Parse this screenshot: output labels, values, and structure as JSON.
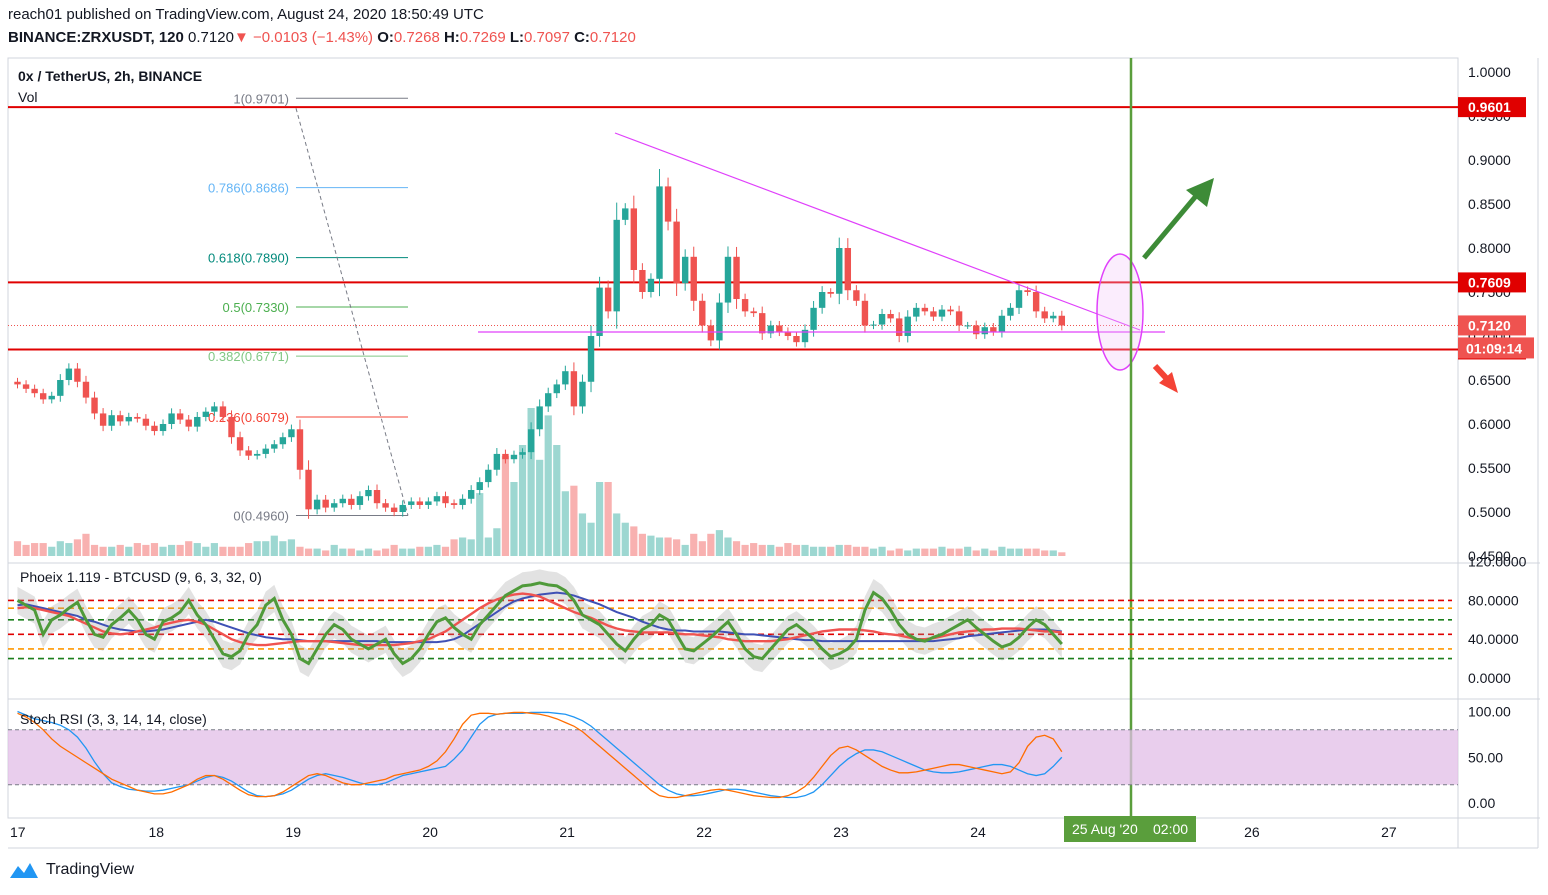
{
  "header": {
    "publisher": "reach01 published on TradingView.com, August 24, 2020 18:50:49 UTC",
    "symbol": "BINANCE:ZRXUSDT, 120",
    "last": "0.7120",
    "change": "−0.0103 (−1.43%)",
    "open_label": "O:",
    "open": "0.7268",
    "high_label": "H:",
    "high": "0.7269",
    "low_label": "L:",
    "low": "0.7097",
    "close_label": "C:",
    "close": "0.7120"
  },
  "colors": {
    "up": "#26a69a",
    "down": "#ef5350",
    "red_level": "#e00000",
    "trend": "#e040fb",
    "green_line": "#5a9e3c",
    "stoch_band": "#e1bee7"
  },
  "brand": {
    "name": "TradingView",
    "icon": "tradingview-logo-icon"
  },
  "chart_data": [
    {
      "type": "candlestick",
      "title": "0x / TetherUS, 2h, BINANCE",
      "volume_label": "Vol",
      "ylim": [
        0.45,
        1.01
      ],
      "y_ticks": [
        "1.0000",
        "0.9500",
        "0.9000",
        "0.8500",
        "0.8000",
        "0.7500",
        "0.7000",
        "0.6500",
        "0.6000",
        "0.5500",
        "0.5000",
        "0.4500"
      ],
      "x_ticks": [
        "17",
        "18",
        "19",
        "20",
        "21",
        "22",
        "23",
        "24",
        "25 Aug '20",
        "26",
        "27"
      ],
      "x_tick_index": [
        0,
        16,
        32,
        48,
        64,
        80,
        96,
        112,
        128,
        144,
        160
      ],
      "crosshair_time": "02:00",
      "horizontal_levels": [
        {
          "price": 0.9601,
          "label": "0.9601"
        },
        {
          "price": 0.7609,
          "label": "0.7609"
        },
        {
          "price": 0.6847,
          "label": "0.6847"
        }
      ],
      "last_price_label": "0.7120",
      "countdown_label": "01:09:14",
      "fib_levels": [
        {
          "ratio": "1",
          "price": 0.9701,
          "label": "1(0.9701)",
          "color": "#787b86"
        },
        {
          "ratio": "0.786",
          "price": 0.8686,
          "label": "0.786(0.8686)",
          "color": "#64b5f6"
        },
        {
          "ratio": "0.618",
          "price": 0.789,
          "label": "0.618(0.7890)",
          "color": "#00897b"
        },
        {
          "ratio": "0.5",
          "price": 0.733,
          "label": "0.5(0.7330)",
          "color": "#4caf50"
        },
        {
          "ratio": "0.382",
          "price": 0.6771,
          "label": "0.382(0.6771)",
          "color": "#81c784"
        },
        {
          "ratio": "0.236",
          "price": 0.6079,
          "label": "0.236(0.6079)",
          "color": "#f44336"
        },
        {
          "ratio": "0",
          "price": 0.496,
          "label": "0(0.4960)",
          "color": "#787b86"
        }
      ],
      "closes": [
        0.645,
        0.64,
        0.635,
        0.628,
        0.632,
        0.65,
        0.663,
        0.648,
        0.63,
        0.612,
        0.598,
        0.61,
        0.603,
        0.608,
        0.606,
        0.598,
        0.592,
        0.6,
        0.612,
        0.605,
        0.597,
        0.608,
        0.614,
        0.62,
        0.608,
        0.585,
        0.57,
        0.564,
        0.566,
        0.572,
        0.577,
        0.585,
        0.594,
        0.548,
        0.503,
        0.514,
        0.505,
        0.51,
        0.515,
        0.508,
        0.518,
        0.525,
        0.51,
        0.505,
        0.5,
        0.508,
        0.512,
        0.508,
        0.512,
        0.518,
        0.51,
        0.508,
        0.515,
        0.525,
        0.534,
        0.548,
        0.566,
        0.56,
        0.565,
        0.568,
        0.594,
        0.62,
        0.635,
        0.645,
        0.66,
        0.62,
        0.648,
        0.7,
        0.755,
        0.728,
        0.832,
        0.845,
        0.775,
        0.75,
        0.765,
        0.87,
        0.83,
        0.76,
        0.79,
        0.74,
        0.712,
        0.695,
        0.738,
        0.79,
        0.742,
        0.728,
        0.726,
        0.703,
        0.712,
        0.705,
        0.7,
        0.693,
        0.707,
        0.732,
        0.75,
        0.748,
        0.8,
        0.752,
        0.74,
        0.712,
        0.713,
        0.725,
        0.72,
        0.7,
        0.722,
        0.732,
        0.728,
        0.722,
        0.73,
        0.728,
        0.712,
        0.712,
        0.702,
        0.71,
        0.705,
        0.723,
        0.732,
        0.752,
        0.75,
        0.728,
        0.72,
        0.723,
        0.712
      ],
      "volume_ratio": [
        0.08,
        0.06,
        0.07,
        0.07,
        0.05,
        0.08,
        0.07,
        0.09,
        0.12,
        0.06,
        0.05,
        0.05,
        0.06,
        0.05,
        0.07,
        0.06,
        0.07,
        0.05,
        0.06,
        0.06,
        0.08,
        0.07,
        0.05,
        0.07,
        0.05,
        0.05,
        0.05,
        0.07,
        0.08,
        0.08,
        0.11,
        0.08,
        0.09,
        0.05,
        0.04,
        0.04,
        0.03,
        0.06,
        0.04,
        0.04,
        0.03,
        0.04,
        0.03,
        0.04,
        0.06,
        0.04,
        0.04,
        0.05,
        0.05,
        0.06,
        0.05,
        0.09,
        0.1,
        0.09,
        0.34,
        0.1,
        0.15,
        0.54,
        0.4,
        0.6,
        0.8,
        0.52,
        0.76,
        0.6,
        0.35,
        0.38,
        0.23,
        0.18,
        0.4,
        0.4,
        0.23,
        0.18,
        0.16,
        0.12,
        0.11,
        0.1,
        0.1,
        0.09,
        0.06,
        0.12,
        0.08,
        0.12,
        0.14,
        0.1,
        0.08,
        0.06,
        0.07,
        0.06,
        0.06,
        0.05,
        0.07,
        0.06,
        0.06,
        0.05,
        0.05,
        0.05,
        0.06,
        0.06,
        0.05,
        0.05,
        0.04,
        0.05,
        0.03,
        0.04,
        0.03,
        0.04,
        0.04,
        0.04,
        0.05,
        0.04,
        0.04,
        0.05,
        0.03,
        0.04,
        0.03,
        0.05,
        0.04,
        0.04,
        0.04,
        0.04,
        0.03,
        0.03,
        0.02
      ]
    },
    {
      "type": "line",
      "title": "Phoeix 1.119 - BTCUSD (9, 6, 3, 32, 0)",
      "ylim": [
        -10,
        120
      ],
      "y_ticks": [
        "120.0000",
        "80.0000",
        "40.0000",
        "0.0000"
      ],
      "levels": [
        80,
        72,
        60,
        45,
        30,
        20
      ],
      "series": [
        {
          "values": [
            75,
            76,
            74,
            72,
            70,
            68,
            66,
            64,
            60,
            58,
            55,
            52,
            50,
            49,
            48,
            48,
            49,
            50,
            52,
            54,
            56,
            58,
            60,
            58,
            55,
            52,
            49,
            46,
            44,
            42,
            41,
            40,
            40,
            39,
            38,
            38,
            38,
            38,
            38,
            38,
            38,
            38,
            38,
            37,
            37,
            37,
            37,
            37,
            37,
            37,
            38,
            40,
            44,
            50,
            56,
            62,
            68,
            74,
            79,
            82,
            84,
            86,
            87,
            88,
            87,
            85,
            82,
            79,
            76,
            72,
            68,
            65,
            62,
            58,
            55,
            52,
            50,
            49,
            49,
            48,
            48,
            48,
            48,
            47,
            46,
            45,
            45,
            44,
            43,
            42,
            41,
            40,
            39,
            39,
            38,
            38,
            38,
            38,
            38,
            38,
            38,
            38,
            38,
            38,
            38,
            38,
            38,
            38,
            39,
            40,
            41,
            43,
            44,
            45,
            46,
            47,
            48,
            49,
            50,
            50,
            50,
            49,
            48
          ]
        },
        {
          "values": [
            72,
            73,
            72,
            70,
            68,
            66,
            64,
            60,
            56,
            52,
            48,
            46,
            45,
            46,
            48,
            50,
            52,
            55,
            57,
            59,
            60,
            58,
            55,
            50,
            45,
            40,
            37,
            35,
            34,
            34,
            35,
            36,
            37,
            38,
            38,
            38,
            38,
            37,
            36,
            35,
            34,
            34,
            34,
            34,
            34,
            35,
            36,
            38,
            40,
            44,
            48,
            54,
            60,
            66,
            72,
            77,
            81,
            84,
            86,
            87,
            86,
            84,
            80,
            76,
            72,
            68,
            65,
            62,
            58,
            54,
            51,
            49,
            48,
            47,
            47,
            47,
            47,
            46,
            45,
            45,
            44,
            43,
            42,
            40,
            39,
            38,
            38,
            38,
            38,
            39,
            40,
            42,
            44,
            46,
            48,
            49,
            50,
            50,
            50,
            49,
            48,
            46,
            45,
            44,
            42,
            40,
            40,
            41,
            43,
            45,
            47,
            48,
            49,
            50,
            50,
            51,
            51,
            51,
            50,
            49,
            48,
            48,
            47
          ]
        },
        {
          "values": [
            80,
            75,
            70,
            45,
            60,
            65,
            72,
            78,
            60,
            45,
            42,
            55,
            62,
            70,
            60,
            45,
            40,
            58,
            62,
            68,
            80,
            65,
            55,
            40,
            25,
            22,
            28,
            45,
            55,
            75,
            82,
            60,
            45,
            20,
            15,
            30,
            45,
            55,
            50,
            40,
            35,
            30,
            35,
            40,
            25,
            15,
            20,
            30,
            45,
            58,
            62,
            52,
            45,
            40,
            55,
            65,
            75,
            85,
            90,
            95,
            96,
            98,
            96,
            95,
            90,
            80,
            65,
            60,
            55,
            45,
            35,
            28,
            40,
            50,
            55,
            65,
            60,
            45,
            30,
            28,
            35,
            42,
            50,
            58,
            45,
            30,
            22,
            20,
            30,
            40,
            50,
            55,
            48,
            40,
            30,
            22,
            25,
            30,
            40,
            70,
            88,
            82,
            70,
            55,
            45,
            40,
            38,
            42,
            45,
            50,
            55,
            60,
            52,
            45,
            38,
            32,
            35,
            42,
            52,
            60,
            55,
            45,
            35
          ]
        }
      ]
    },
    {
      "type": "line",
      "title": "Stoch RSI (3, 3, 14, 14, close)",
      "ylim": [
        -8,
        108
      ],
      "y_ticks": [
        "100.00",
        "50.00",
        "0.00"
      ],
      "band": [
        20,
        80
      ],
      "series": [
        {
          "values": [
            100,
            96,
            92,
            90,
            88,
            85,
            80,
            72,
            60,
            45,
            32,
            22,
            18,
            15,
            14,
            13,
            13,
            14,
            16,
            18,
            20,
            24,
            28,
            30,
            28,
            24,
            18,
            12,
            8,
            7,
            8,
            10,
            14,
            20,
            26,
            30,
            32,
            30,
            28,
            25,
            22,
            20,
            20,
            22,
            26,
            30,
            32,
            34,
            36,
            38,
            40,
            48,
            58,
            72,
            86,
            94,
            97,
            98,
            98,
            98,
            99,
            99,
            99,
            98,
            97,
            94,
            90,
            84,
            76,
            68,
            60,
            52,
            44,
            36,
            28,
            20,
            14,
            10,
            8,
            8,
            9,
            11,
            13,
            15,
            15,
            14,
            12,
            10,
            8,
            7,
            6,
            6,
            8,
            12,
            20,
            30,
            40,
            48,
            54,
            58,
            58,
            56,
            52,
            48,
            44,
            40,
            36,
            34,
            33,
            33,
            34,
            36,
            38,
            40,
            42,
            42,
            40,
            36,
            32,
            30,
            32,
            40,
            50
          ]
        },
        {
          "values": [
            98,
            94,
            88,
            80,
            70,
            62,
            56,
            50,
            44,
            38,
            32,
            26,
            22,
            18,
            14,
            12,
            10,
            10,
            12,
            16,
            20,
            26,
            30,
            30,
            26,
            20,
            14,
            9,
            7,
            7,
            8,
            12,
            18,
            24,
            30,
            32,
            30,
            26,
            22,
            20,
            20,
            22,
            24,
            26,
            30,
            32,
            34,
            36,
            40,
            46,
            56,
            70,
            86,
            96,
            98,
            98,
            97,
            98,
            99,
            99,
            98,
            97,
            95,
            92,
            88,
            84,
            78,
            70,
            62,
            54,
            46,
            38,
            30,
            22,
            14,
            8,
            6,
            6,
            8,
            10,
            12,
            14,
            15,
            14,
            12,
            10,
            8,
            7,
            6,
            6,
            8,
            12,
            18,
            28,
            40,
            52,
            60,
            62,
            58,
            52,
            46,
            40,
            36,
            33,
            33,
            34,
            36,
            38,
            40,
            42,
            42,
            40,
            38,
            36,
            34,
            32,
            34,
            44,
            62,
            72,
            74,
            70,
            56
          ]
        }
      ]
    }
  ]
}
